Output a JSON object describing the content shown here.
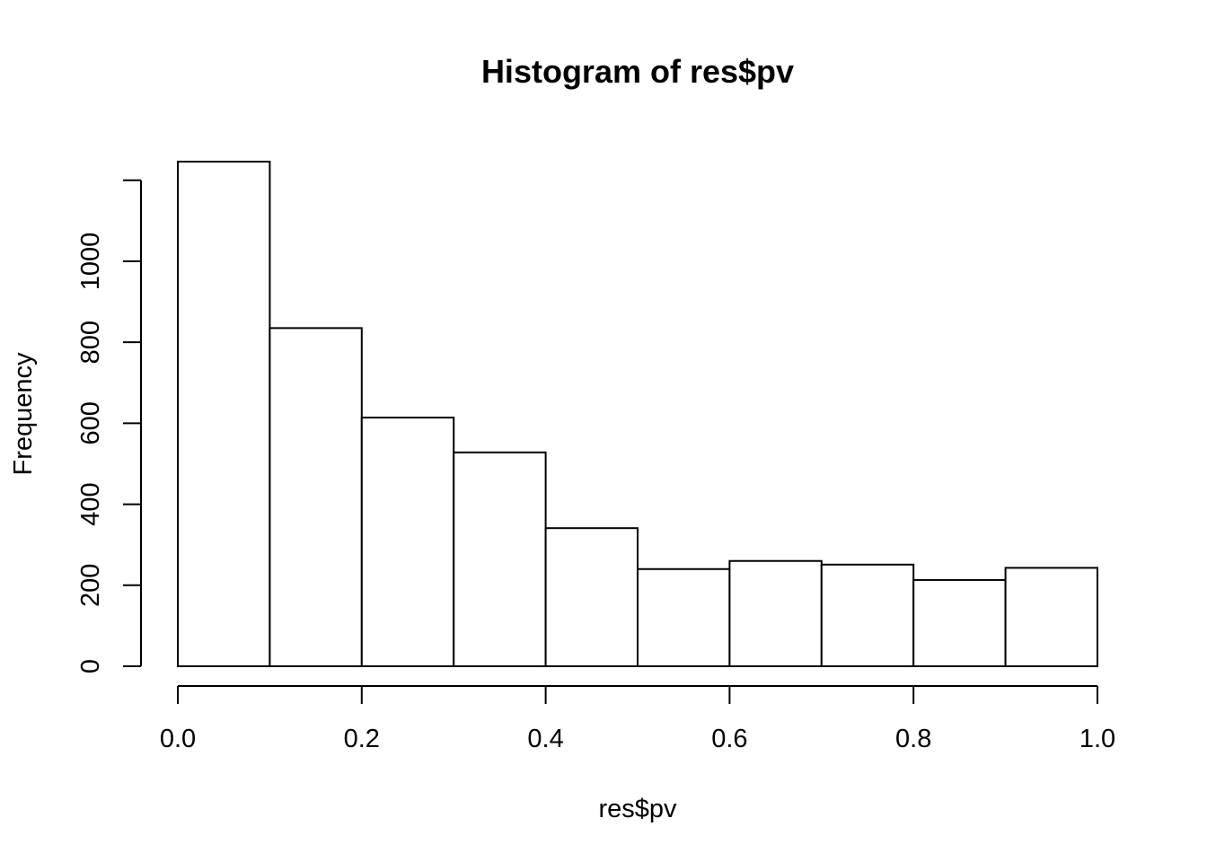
{
  "chart_data": {
    "type": "bar",
    "title": "Histogram of res$pv",
    "xlabel": "res$pv",
    "ylabel": "Frequency",
    "bins": [
      {
        "start": 0.0,
        "end": 0.1,
        "count": 1246
      },
      {
        "start": 0.1,
        "end": 0.2,
        "count": 835
      },
      {
        "start": 0.2,
        "end": 0.3,
        "count": 614
      },
      {
        "start": 0.3,
        "end": 0.4,
        "count": 528
      },
      {
        "start": 0.4,
        "end": 0.5,
        "count": 341
      },
      {
        "start": 0.5,
        "end": 0.6,
        "count": 240
      },
      {
        "start": 0.6,
        "end": 0.7,
        "count": 260
      },
      {
        "start": 0.7,
        "end": 0.8,
        "count": 251
      },
      {
        "start": 0.8,
        "end": 0.9,
        "count": 213
      },
      {
        "start": 0.9,
        "end": 1.0,
        "count": 243
      }
    ],
    "xlim": [
      0,
      1
    ],
    "ylim": [
      0,
      1246
    ],
    "x_ticks": [
      0.0,
      0.2,
      0.4,
      0.6,
      0.8,
      1.0
    ],
    "x_tick_labels": [
      "0.0",
      "0.2",
      "0.4",
      "0.6",
      "0.8",
      "1.0"
    ],
    "y_ticks": [
      0,
      200,
      400,
      600,
      800,
      1000,
      1200
    ],
    "y_tick_labels": [
      "0",
      "200",
      "400",
      "600",
      "800",
      "1000",
      ""
    ],
    "grid": false,
    "bar_fill": "#ffffff",
    "bar_stroke": "#000000"
  }
}
